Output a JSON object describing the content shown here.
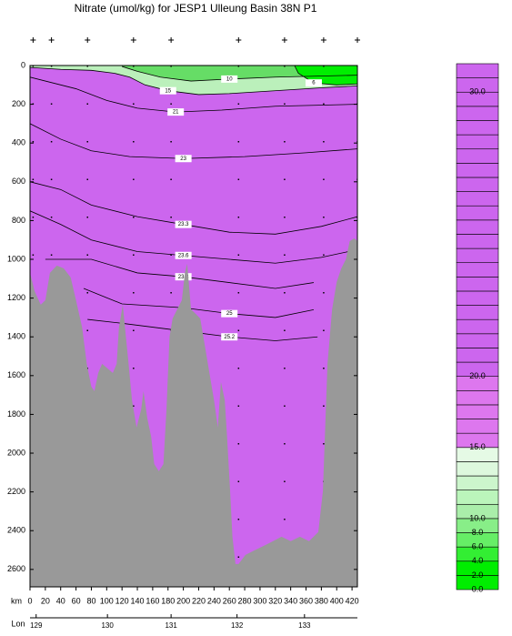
{
  "chart_data": {
    "type": "section",
    "title": "Nitrate (umol/kg) for JESP1 Ulleung Basin 38N P1",
    "xlabel": "km",
    "lonlabel": "Lon",
    "xlim": [
      0,
      427
    ],
    "ylim": [
      0,
      2690
    ],
    "xticks": [
      0,
      20,
      40,
      60,
      80,
      100,
      120,
      140,
      160,
      180,
      200,
      220,
      240,
      260,
      280,
      300,
      320,
      340,
      360,
      380,
      400,
      420
    ],
    "yticks": [
      0,
      200,
      400,
      600,
      800,
      1000,
      1200,
      1400,
      1600,
      1800,
      2000,
      2200,
      2400,
      2600
    ],
    "lonticks": [
      129,
      130,
      131,
      132,
      133
    ],
    "lon_km": [
      8,
      101,
      184,
      270,
      358
    ],
    "stations": [
      4,
      28,
      75,
      135,
      184,
      272,
      332,
      383,
      427
    ],
    "background": "#cc66ee",
    "bottom_color": "#999999",
    "bottom": {
      "km": [
        0,
        6,
        14,
        20,
        26,
        35,
        44,
        53,
        60,
        68,
        74,
        80,
        84,
        89,
        94,
        101,
        108,
        113,
        116,
        121,
        125,
        128,
        133,
        139,
        145,
        148,
        153,
        158,
        162,
        168,
        174,
        178,
        182,
        186,
        192,
        198,
        202,
        205,
        210,
        216,
        222,
        228,
        234,
        240,
        245,
        249,
        254,
        257,
        261,
        264,
        268,
        272,
        281,
        293,
        305,
        317,
        328,
        340,
        352,
        364,
        376,
        382,
        388,
        394,
        400,
        406,
        412,
        417,
        423,
        427
      ],
      "depth": [
        1070,
        1164,
        1234,
        1211,
        1070,
        1032,
        1047,
        1093,
        1211,
        1352,
        1539,
        1657,
        1680,
        1586,
        1539,
        1563,
        1586,
        1539,
        1352,
        1234,
        1398,
        1516,
        1727,
        1868,
        1774,
        1680,
        1821,
        1915,
        2056,
        2093,
        2056,
        1774,
        1399,
        1305,
        1258,
        1211,
        1070,
        1023,
        1258,
        1281,
        1305,
        1445,
        1586,
        1727,
        1868,
        1633,
        1727,
        1915,
        2196,
        2431,
        2572,
        2572,
        2525,
        2501,
        2478,
        2454,
        2431,
        2454,
        2431,
        2454,
        2407,
        2196,
        1539,
        1258,
        1117,
        1047,
        1000,
        906,
        892,
        906
      ]
    },
    "contours": [
      {
        "value": 15,
        "fill": "#bbf0bb",
        "km": [
          0,
          40,
          80,
          110,
          130,
          150,
          180,
          220,
          260,
          300,
          340,
          380,
          427
        ],
        "depth": [
          10,
          20,
          25,
          40,
          60,
          100,
          130,
          150,
          145,
          135,
          125,
          115,
          105
        ]
      },
      {
        "value": 10,
        "fill": "#66dd66",
        "km": [
          120,
          140,
          170,
          210,
          260,
          320,
          370,
          427
        ],
        "depth": [
          5,
          30,
          60,
          80,
          70,
          60,
          55,
          50
        ]
      },
      {
        "value": 6,
        "fill": "#00ee00",
        "km": [
          345,
          350,
          370,
          400,
          427
        ],
        "depth": [
          0,
          40,
          90,
          100,
          95
        ]
      },
      {
        "value": 21,
        "km": [
          0,
          60,
          100,
          140,
          190,
          250,
          320,
          427
        ],
        "depth": [
          60,
          120,
          180,
          220,
          240,
          230,
          210,
          200
        ]
      },
      {
        "value": 23,
        "km": [
          0,
          40,
          80,
          130,
          200,
          280,
          360,
          427
        ],
        "depth": [
          300,
          380,
          440,
          470,
          480,
          470,
          450,
          430
        ]
      },
      {
        "value": 23.3,
        "km": [
          0,
          40,
          80,
          140,
          200,
          260,
          320,
          380,
          427
        ],
        "depth": [
          600,
          640,
          720,
          780,
          820,
          860,
          870,
          830,
          780
        ]
      },
      {
        "value": 23.6,
        "km": [
          0,
          40,
          80,
          140,
          200,
          260,
          320,
          380,
          427
        ],
        "depth": [
          750,
          820,
          900,
          960,
          980,
          1000,
          1020,
          990,
          950
        ]
      },
      {
        "value": 23.8,
        "km": [
          20,
          80,
          140,
          200,
          260,
          320,
          370
        ],
        "depth": [
          1000,
          1000,
          1070,
          1090,
          1120,
          1150,
          1120
        ]
      },
      {
        "value": 25,
        "km": [
          70,
          120,
          200,
          260,
          320,
          370
        ],
        "depth": [
          1150,
          1230,
          1250,
          1280,
          1300,
          1260
        ]
      },
      {
        "value": 25.2,
        "km": [
          75,
          120,
          200,
          260,
          320,
          375
        ],
        "depth": [
          1310,
          1330,
          1370,
          1400,
          1420,
          1400
        ]
      }
    ],
    "colorbar": {
      "levels": [
        0,
        2,
        4,
        6,
        8,
        10,
        11,
        12,
        13,
        14,
        15,
        16,
        17,
        18,
        19,
        20,
        20.5,
        21,
        21.5,
        22,
        22.5,
        23,
        23.5,
        24,
        24.5,
        25,
        25.5,
        26,
        26.5,
        27,
        27.5,
        28,
        28.5,
        29,
        29.5,
        30,
        30.5,
        31
      ],
      "colors": [
        "#00ee00",
        "#00ee00",
        "#33ee33",
        "#66ee66",
        "#88ee88",
        "#aaeeaa",
        "#bbf5bb",
        "#ccf5cc",
        "#ddf8dd",
        "#e5fae5",
        "#dd77ee",
        "#dd77ee",
        "#dd77ee",
        "#dd77ee",
        "#dd77ee",
        "#cc66ee",
        "#cc66ee",
        "#cc66ee",
        "#cc66ee",
        "#cc66ee",
        "#cc66ee",
        "#cc66ee",
        "#cc66ee",
        "#cc66ee",
        "#cc66ee",
        "#cc66ee",
        "#cc66ee",
        "#cc66ee",
        "#cc66ee",
        "#cc66ee",
        "#cc66ee",
        "#cc66ee",
        "#cc66ee",
        "#cc66ee",
        "#cc66ee",
        "#cc66ee",
        "#cc66ee"
      ],
      "ticks": [
        {
          "value": 0,
          "label": "0.0"
        },
        {
          "value": 2,
          "label": "2.0"
        },
        {
          "value": 4,
          "label": "4.0"
        },
        {
          "value": 6,
          "label": "6.0"
        },
        {
          "value": 8,
          "label": "8.0"
        },
        {
          "value": 10,
          "label": "10.0"
        },
        {
          "value": 15,
          "label": "15.0"
        },
        {
          "value": 20,
          "label": "20.0"
        },
        {
          "value": 30,
          "label": "30.0"
        }
      ]
    }
  }
}
